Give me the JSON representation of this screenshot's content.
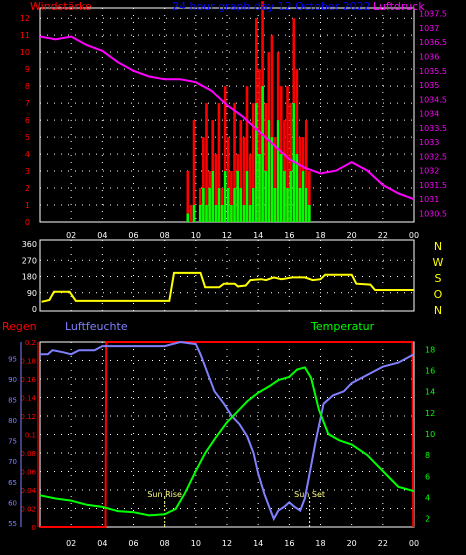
{
  "header": {
    "title": "24 hour graph day 12 October 2022"
  },
  "colors": {
    "background": "#000000",
    "frame": "#ffffff",
    "grid": "#ffffff",
    "wind_gust": "#ff0000",
    "wind_avg": "#00ff00",
    "pressure": "#ff00ff",
    "wind_dir": "#ffff00",
    "compass_letters": "#ffff00",
    "rain": "#ff0000",
    "humidity": "#8080ff",
    "temperature": "#00ff00",
    "title": "#0000ff",
    "sun_marker": "#ffff80"
  },
  "chart_data": [
    {
      "id": "wind_pressure",
      "type": "bar",
      "labels": {
        "left": "Windstärke",
        "right": "Luftdruck"
      },
      "x_ticks": [
        "02",
        "04",
        "06",
        "08",
        "10",
        "12",
        "14",
        "16",
        "18",
        "20",
        "22",
        "00"
      ],
      "x_range": [
        0,
        24
      ],
      "left_axis": {
        "ticks": [
          "0",
          "1",
          "2",
          "3",
          "4",
          "5",
          "6",
          "7",
          "8",
          "9",
          "10",
          "11",
          "12"
        ],
        "range": [
          0,
          12.6
        ]
      },
      "right_axis": {
        "ticks": [
          "1030.5",
          "1031",
          "1031.5",
          "1032",
          "1032.5",
          "1033",
          "1033.5",
          "1034",
          "1034.5",
          "1035",
          "1035.5",
          "1036",
          "1036.5",
          "1037",
          "1037.5"
        ],
        "range": [
          1030.2,
          1037.7
        ]
      },
      "grid": true,
      "series": [
        {
          "kind": "pressure",
          "points": [
            [
              0,
              1036.7
            ],
            [
              1,
              1036.6
            ],
            [
              2,
              1036.7
            ],
            [
              3,
              1036.4
            ],
            [
              4,
              1036.2
            ],
            [
              5,
              1035.8
            ],
            [
              6,
              1035.5
            ],
            [
              7,
              1035.3
            ],
            [
              8,
              1035.2
            ],
            [
              9,
              1035.2
            ],
            [
              10,
              1035.1
            ],
            [
              11,
              1034.8
            ],
            [
              12,
              1034.3
            ],
            [
              13,
              1033.9
            ],
            [
              14,
              1033.4
            ],
            [
              15,
              1032.9
            ],
            [
              16,
              1032.4
            ],
            [
              17,
              1032.1
            ],
            [
              18,
              1031.9
            ],
            [
              19,
              1032.0
            ],
            [
              20,
              1032.3
            ],
            [
              21,
              1032.0
            ],
            [
              22,
              1031.5
            ],
            [
              23,
              1031.2
            ],
            [
              24,
              1031.0
            ]
          ]
        },
        {
          "kind": "gust",
          "points": [
            [
              9.4,
              3
            ],
            [
              9.6,
              1
            ],
            [
              9.8,
              6
            ],
            [
              10.0,
              0
            ],
            [
              10.2,
              2
            ],
            [
              10.4,
              5
            ],
            [
              10.6,
              7
            ],
            [
              10.8,
              3
            ],
            [
              11.0,
              6
            ],
            [
              11.2,
              4
            ],
            [
              11.4,
              7
            ],
            [
              11.6,
              2
            ],
            [
              11.8,
              8
            ],
            [
              12.0,
              5
            ],
            [
              12.2,
              3
            ],
            [
              12.4,
              7
            ],
            [
              12.6,
              4
            ],
            [
              12.8,
              6
            ],
            [
              13.0,
              5
            ],
            [
              13.2,
              8
            ],
            [
              13.4,
              4
            ],
            [
              13.6,
              7
            ],
            [
              13.8,
              12
            ],
            [
              14.0,
              9
            ],
            [
              14.2,
              13
            ],
            [
              14.4,
              7
            ],
            [
              14.6,
              10
            ],
            [
              14.8,
              11
            ],
            [
              15.0,
              5
            ],
            [
              15.2,
              10
            ],
            [
              15.4,
              8
            ],
            [
              15.6,
              6
            ],
            [
              15.8,
              8
            ],
            [
              16.0,
              7
            ],
            [
              16.2,
              12
            ],
            [
              16.4,
              9
            ],
            [
              16.6,
              5
            ],
            [
              16.8,
              5
            ],
            [
              17.0,
              6
            ],
            [
              17.2,
              3
            ]
          ]
        },
        {
          "kind": "average",
          "points": [
            [
              9.4,
              0.5
            ],
            [
              9.6,
              0
            ],
            [
              9.8,
              1
            ],
            [
              10.0,
              0
            ],
            [
              10.2,
              1
            ],
            [
              10.4,
              2
            ],
            [
              10.6,
              1
            ],
            [
              10.8,
              2
            ],
            [
              11.0,
              3
            ],
            [
              11.2,
              1
            ],
            [
              11.4,
              2
            ],
            [
              11.6,
              1
            ],
            [
              11.8,
              3
            ],
            [
              12.0,
              2
            ],
            [
              12.2,
              1
            ],
            [
              12.4,
              2
            ],
            [
              12.6,
              3
            ],
            [
              12.8,
              2
            ],
            [
              13.0,
              1
            ],
            [
              13.2,
              3
            ],
            [
              13.4,
              1
            ],
            [
              13.6,
              2
            ],
            [
              13.8,
              7
            ],
            [
              14.0,
              4
            ],
            [
              14.2,
              8
            ],
            [
              14.4,
              3
            ],
            [
              14.6,
              6
            ],
            [
              14.8,
              5
            ],
            [
              15.0,
              2
            ],
            [
              15.2,
              6
            ],
            [
              15.4,
              4
            ],
            [
              15.6,
              3
            ],
            [
              15.8,
              2
            ],
            [
              16.0,
              3
            ],
            [
              16.2,
              7
            ],
            [
              16.4,
              4
            ],
            [
              16.6,
              2
            ],
            [
              16.8,
              3
            ],
            [
              17.0,
              2
            ],
            [
              17.2,
              1
            ]
          ]
        }
      ]
    },
    {
      "id": "wind_direction",
      "type": "line",
      "x_range": [
        0,
        24
      ],
      "y_axis": {
        "ticks": [
          "0",
          "90",
          "180",
          "270",
          "360"
        ],
        "range": [
          0,
          360
        ]
      },
      "compass": [
        "N",
        "W",
        "S",
        "O",
        "N"
      ],
      "grid": true,
      "series": [
        {
          "kind": "direction",
          "points": [
            [
              0.1,
              40
            ],
            [
              0.6,
              50
            ],
            [
              0.9,
              95
            ],
            [
              1.9,
              95
            ],
            [
              2.3,
              45
            ],
            [
              8.3,
              45
            ],
            [
              8.6,
              200
            ],
            [
              10.3,
              200
            ],
            [
              10.6,
              120
            ],
            [
              11.5,
              120
            ],
            [
              11.8,
              140
            ],
            [
              12.5,
              140
            ],
            [
              12.7,
              125
            ],
            [
              13.2,
              130
            ],
            [
              13.5,
              160
            ],
            [
              14.2,
              165
            ],
            [
              14.5,
              160
            ],
            [
              15.0,
              175
            ],
            [
              15.5,
              165
            ],
            [
              16.2,
              175
            ],
            [
              17.0,
              175
            ],
            [
              17.5,
              160
            ],
            [
              18.0,
              165
            ],
            [
              18.3,
              190
            ],
            [
              20.0,
              190
            ],
            [
              20.3,
              140
            ],
            [
              21.2,
              135
            ],
            [
              21.5,
              105
            ],
            [
              24,
              105
            ]
          ]
        }
      ]
    },
    {
      "id": "rain_humidity_temperature",
      "type": "line",
      "labels": {
        "rain": "Regen",
        "humidity": "Luftfeuchte",
        "temperature": "Temperatur"
      },
      "x_ticks": [
        "02",
        "04",
        "06",
        "08",
        "10",
        "12",
        "14",
        "16",
        "18",
        "20",
        "22",
        "00"
      ],
      "x_range": [
        0,
        24
      ],
      "rain_axis": {
        "ticks": [
          "0",
          "0.02",
          "0.04",
          "0.06",
          "0.08",
          "0.1",
          "0.12",
          "0.14",
          "0.16",
          "0.18",
          "0.2"
        ],
        "range": [
          0,
          0.2
        ]
      },
      "humidity_axis": {
        "ticks": [
          "55",
          "60",
          "65",
          "70",
          "75",
          "80",
          "85",
          "90",
          "95"
        ],
        "range": [
          54,
          99
        ]
      },
      "temperature_axis": {
        "ticks": [
          "2",
          "4",
          "6",
          "8",
          "10",
          "12",
          "14",
          "16",
          "18"
        ],
        "range": [
          1.2,
          18.7
        ]
      },
      "grid": true,
      "annotations": [
        {
          "x": 8.0,
          "label": "Sun Rise"
        },
        {
          "x": 17.3,
          "label": "Sun Set"
        }
      ],
      "series": [
        {
          "kind": "rain",
          "points": [
            [
              0.0,
              0
            ],
            [
              4.2,
              0
            ],
            [
              4.25,
              0.2
            ],
            [
              23.9,
              0.2
            ],
            [
              23.95,
              0
            ]
          ]
        },
        {
          "kind": "humidity",
          "points": [
            [
              0,
              96
            ],
            [
              0.5,
              96
            ],
            [
              0.8,
              97
            ],
            [
              1.5,
              96.5
            ],
            [
              2,
              96
            ],
            [
              2.5,
              97
            ],
            [
              3.5,
              97
            ],
            [
              4,
              98
            ],
            [
              5,
              98
            ],
            [
              6,
              98
            ],
            [
              7,
              98
            ],
            [
              8,
              98
            ],
            [
              9,
              99
            ],
            [
              10,
              98.5
            ],
            [
              10.3,
              96
            ],
            [
              10.7,
              92
            ],
            [
              11.2,
              87
            ],
            [
              11.8,
              84
            ],
            [
              12.3,
              81
            ],
            [
              12.8,
              79
            ],
            [
              13.3,
              76
            ],
            [
              13.7,
              72
            ],
            [
              14.0,
              67
            ],
            [
              14.4,
              62
            ],
            [
              14.8,
              58
            ],
            [
              15.0,
              56
            ],
            [
              15.3,
              58
            ],
            [
              15.7,
              59
            ],
            [
              16.0,
              60
            ],
            [
              16.3,
              59
            ],
            [
              16.7,
              58
            ],
            [
              17.0,
              61
            ],
            [
              17.3,
              67
            ],
            [
              17.7,
              75
            ],
            [
              18.2,
              84
            ],
            [
              18.8,
              86
            ],
            [
              19.5,
              87
            ],
            [
              20,
              89
            ],
            [
              21,
              91
            ],
            [
              22,
              93
            ],
            [
              23,
              94
            ],
            [
              24,
              96
            ]
          ]
        },
        {
          "kind": "temperature",
          "points": [
            [
              0,
              4.2
            ],
            [
              1,
              3.9
            ],
            [
              2,
              3.7
            ],
            [
              3,
              3.3
            ],
            [
              4,
              3.1
            ],
            [
              5,
              2.7
            ],
            [
              6,
              2.6
            ],
            [
              7,
              2.3
            ],
            [
              8,
              2.4
            ],
            [
              8.7,
              2.9
            ],
            [
              9.3,
              4.4
            ],
            [
              10,
              6.5
            ],
            [
              10.6,
              8.2
            ],
            [
              11.3,
              9.7
            ],
            [
              12,
              11.1
            ],
            [
              12.6,
              12.0
            ],
            [
              13.3,
              13.1
            ],
            [
              14,
              13.9
            ],
            [
              14.7,
              14.5
            ],
            [
              15.3,
              15.1
            ],
            [
              16,
              15.4
            ],
            [
              16.5,
              16.1
            ],
            [
              17,
              16.3
            ],
            [
              17.4,
              15.3
            ],
            [
              17.9,
              12.3
            ],
            [
              18.5,
              10.0
            ],
            [
              19.2,
              9.4
            ],
            [
              20,
              9.0
            ],
            [
              21,
              8.0
            ],
            [
              22,
              6.5
            ],
            [
              23,
              5.0
            ],
            [
              24,
              4.6
            ]
          ]
        }
      ]
    }
  ]
}
